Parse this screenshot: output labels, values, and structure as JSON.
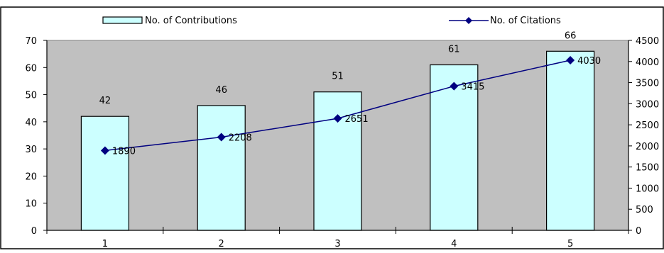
{
  "chart_data": {
    "type": "bar",
    "categories": [
      "1",
      "2",
      "3",
      "4",
      "5"
    ],
    "series": [
      {
        "name": "No. of Contributions",
        "kind": "bar",
        "axis": "left",
        "values": [
          42,
          46,
          51,
          61,
          66
        ],
        "data_labels": [
          "42",
          "46",
          "51",
          "61",
          "66"
        ],
        "color": "#ccffff"
      },
      {
        "name": "No. of Citations",
        "kind": "line",
        "axis": "right",
        "values": [
          1890,
          2208,
          2651,
          3415,
          4030
        ],
        "data_labels": [
          "1890",
          "2208",
          "2651",
          "3415",
          "4030"
        ],
        "color": "#000080"
      }
    ],
    "y_left": {
      "min": 0,
      "max": 70,
      "ticks": [
        "0",
        "10",
        "20",
        "30",
        "40",
        "50",
        "60",
        "70"
      ]
    },
    "y_right": {
      "min": 0,
      "max": 4500,
      "ticks": [
        "0",
        "500",
        "1000",
        "1500",
        "2000",
        "2500",
        "3000",
        "3500",
        "4000",
        "4500"
      ]
    },
    "legend_position": "top",
    "grid": false,
    "plot_background": "#c0c0c0",
    "title": "",
    "xlabel": "",
    "ylabel": ""
  }
}
